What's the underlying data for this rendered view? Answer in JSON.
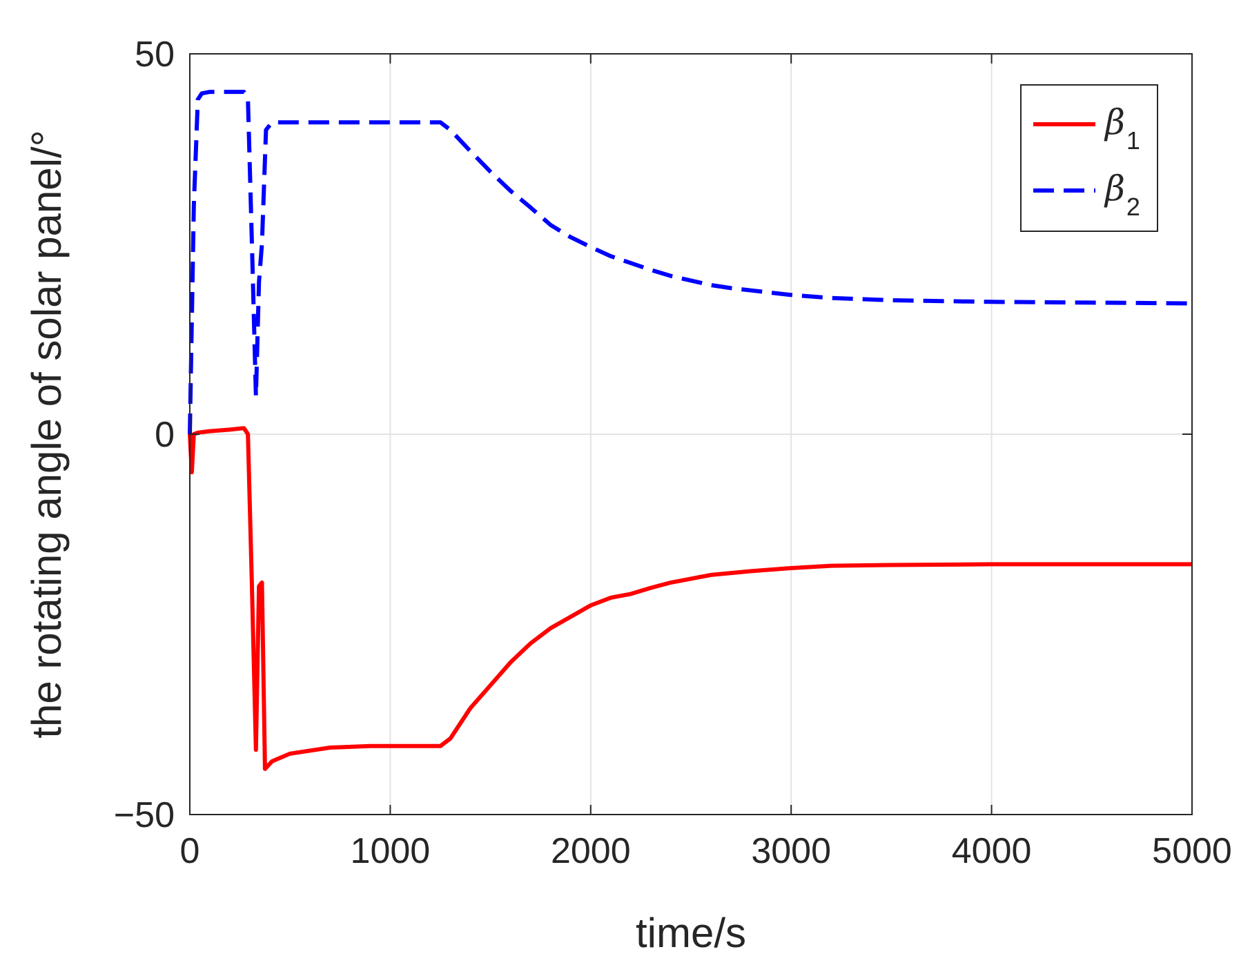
{
  "chart_data": {
    "type": "line",
    "title": "",
    "xlabel": "time/s",
    "ylabel": "the rotating angle of solar panel/°",
    "xlim": [
      0,
      5000
    ],
    "ylim": [
      -50,
      50
    ],
    "x_ticks": [
      0,
      1000,
      2000,
      3000,
      4000,
      5000
    ],
    "x_tick_labels": [
      "0",
      "1000",
      "2000",
      "3000",
      "4000",
      "5000"
    ],
    "y_ticks": [
      -50,
      0,
      50
    ],
    "y_tick_labels": [
      "−50",
      "0",
      "50"
    ],
    "grid": true,
    "legend_position": "top-right",
    "series": [
      {
        "name": "β1",
        "name_base": "β",
        "name_sub": "1",
        "color": "#ff0000",
        "line_style": "solid",
        "x": [
          0,
          10,
          20,
          40,
          100,
          200,
          270,
          290,
          310,
          330,
          345,
          360,
          375,
          410,
          500,
          700,
          900,
          1100,
          1250,
          1300,
          1400,
          1500,
          1600,
          1700,
          1800,
          1900,
          2000,
          2100,
          2200,
          2300,
          2400,
          2500,
          2600,
          2800,
          3000,
          3200,
          3500,
          4000,
          4500,
          5000
        ],
        "y": [
          0,
          -5,
          0,
          0.2,
          0.4,
          0.6,
          0.8,
          0,
          -20,
          -41.5,
          -20,
          -19.5,
          -44,
          -43,
          -42,
          -41.2,
          -41,
          -41,
          -41,
          -40,
          -36,
          -33,
          -30,
          -27.5,
          -25.5,
          -24,
          -22.5,
          -21.5,
          -21,
          -20.2,
          -19.5,
          -19,
          -18.5,
          -18,
          -17.6,
          -17.3,
          -17.2,
          -17.1,
          -17.1,
          -17.1
        ]
      },
      {
        "name": "β2",
        "name_base": "β",
        "name_sub": "2",
        "color": "#0000ff",
        "line_style": "dashed",
        "x": [
          0,
          20,
          40,
          60,
          100,
          150,
          200,
          270,
          290,
          310,
          330,
          345,
          360,
          380,
          410,
          500,
          700,
          900,
          1100,
          1250,
          1300,
          1400,
          1500,
          1600,
          1700,
          1800,
          1900,
          2000,
          2100,
          2200,
          2300,
          2400,
          2500,
          2600,
          2700,
          2800,
          2900,
          3000,
          3200,
          3500,
          4000,
          4500,
          5000
        ],
        "y": [
          0,
          30,
          44,
          44.8,
          45,
          45,
          45,
          45,
          44,
          25,
          5,
          20,
          25,
          40,
          41,
          41,
          41,
          41,
          41,
          41,
          40,
          37.2,
          34.5,
          32,
          29.8,
          27.5,
          25.9,
          24.6,
          23.4,
          22.5,
          21.6,
          20.8,
          20.2,
          19.6,
          19.2,
          18.9,
          18.6,
          18.3,
          17.9,
          17.6,
          17.4,
          17.3,
          17.2
        ]
      }
    ]
  }
}
